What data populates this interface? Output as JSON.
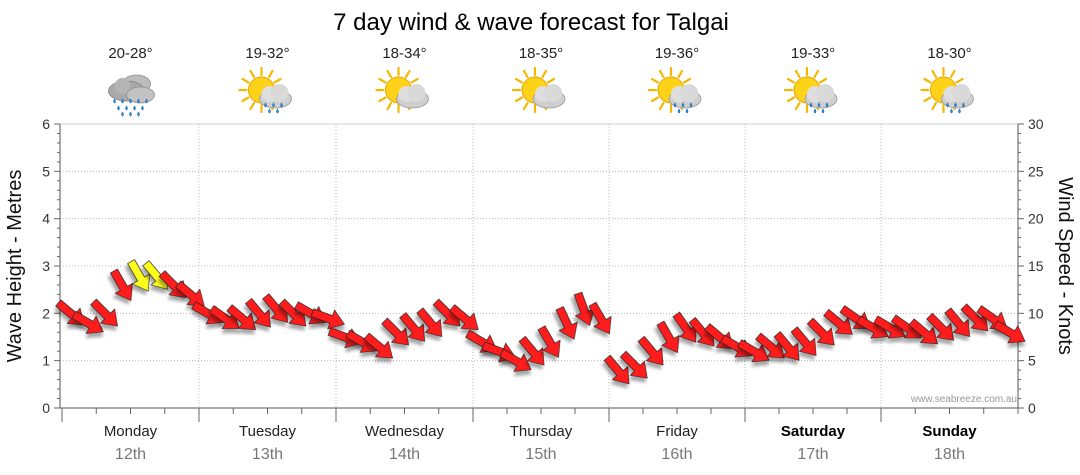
{
  "chart_data": {
    "type": "line",
    "title": "7 day wind & wave forecast for Talgai",
    "ylabel_left": "Wave Height - Metres",
    "ylabel_right": "Wind Speed - Knots",
    "ylim_left": [
      0,
      6
    ],
    "ylim_right": [
      0,
      30
    ],
    "yticks_left": [
      "0",
      "1",
      "2",
      "3",
      "4",
      "5",
      "6"
    ],
    "yticks_right": [
      "0",
      "5",
      "10",
      "15",
      "20",
      "25",
      "30"
    ],
    "grid": true,
    "days": [
      {
        "name": "Monday",
        "date": "12th",
        "temp": "20-28°",
        "icon": "rain-cloud-icon",
        "bold": false
      },
      {
        "name": "Tuesday",
        "date": "13th",
        "temp": "19-32°",
        "icon": "sun-cloud-rain-icon",
        "bold": false
      },
      {
        "name": "Wednesday",
        "date": "14th",
        "temp": "18-34°",
        "icon": "partly-cloudy-icon",
        "bold": false
      },
      {
        "name": "Thursday",
        "date": "15th",
        "temp": "18-35°",
        "icon": "partly-cloudy-icon",
        "bold": false
      },
      {
        "name": "Friday",
        "date": "16th",
        "temp": "19-36°",
        "icon": "sun-cloud-rain-icon",
        "bold": false
      },
      {
        "name": "Saturday",
        "date": "17th",
        "temp": "19-33°",
        "icon": "sun-cloud-rain-icon",
        "bold": true
      },
      {
        "name": "Sunday",
        "date": "18th",
        "temp": "18-30°",
        "icon": "sun-cloud-rain-icon",
        "bold": true
      }
    ],
    "series": [
      {
        "name": "Wind",
        "unit": "knots",
        "note": "3-hourly wind arrows; red = below 15 knots, yellow = 15 knots or more",
        "day_index": [
          0,
          0,
          0,
          0,
          0,
          0,
          0,
          0,
          1,
          1,
          1,
          1,
          1,
          1,
          1,
          1,
          2,
          2,
          2,
          2,
          2,
          2,
          2,
          2,
          3,
          3,
          3,
          3,
          3,
          3,
          3,
          3,
          4,
          4,
          4,
          4,
          4,
          4,
          4,
          4,
          5,
          5,
          5,
          5,
          5,
          5,
          5,
          5,
          6,
          6,
          6,
          6,
          6,
          6,
          6,
          6
        ],
        "values": [
          10,
          9,
          10,
          13,
          14,
          14,
          13,
          12,
          10,
          9.5,
          9.5,
          10,
          10.5,
          10,
          10,
          9.5,
          7.5,
          7,
          6.5,
          8,
          8.5,
          9,
          10,
          9.5,
          7,
          6,
          5,
          6,
          7,
          9,
          10.5,
          9.5,
          4,
          4.5,
          6,
          7.5,
          8.5,
          8,
          7.5,
          6.5,
          6,
          6.5,
          6.5,
          7,
          8,
          9,
          9.5,
          8.5,
          8.5,
          8.5,
          8,
          8.5,
          9,
          9.5,
          9.5,
          8
        ],
        "direction_deg": [
          310,
          300,
          315,
          330,
          330,
          320,
          315,
          310,
          300,
          305,
          310,
          320,
          320,
          315,
          300,
          290,
          290,
          300,
          310,
          315,
          320,
          320,
          315,
          310,
          300,
          290,
          300,
          320,
          330,
          335,
          340,
          330,
          320,
          315,
          320,
          330,
          325,
          320,
          310,
          300,
          300,
          310,
          320,
          320,
          315,
          310,
          305,
          300,
          300,
          305,
          310,
          315,
          320,
          315,
          305,
          300
        ]
      }
    ]
  },
  "credit": "www.seabreeze.com.au",
  "colors": {
    "wind_low": "#ff1a1a",
    "wind_high": "#ffff1a",
    "grid": "#bbbbbb",
    "date_text": "#777777"
  }
}
